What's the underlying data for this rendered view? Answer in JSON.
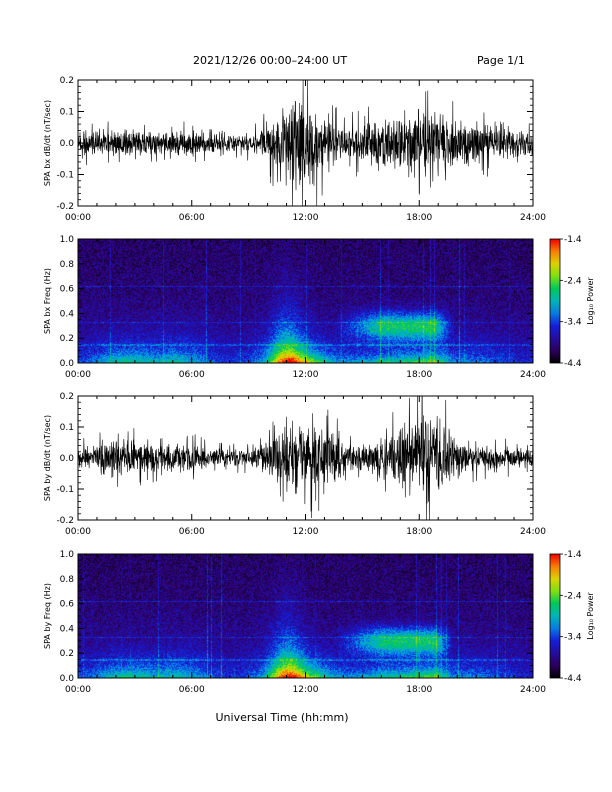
{
  "header": {
    "title": "2021/12/26  00:00–24:00 UT",
    "page_label": "Page 1/1"
  },
  "footer": {
    "xlabel": "Universal Time (hh:mm)"
  },
  "chart_data": [
    {
      "type": "line",
      "id": "bx-wave",
      "ylabel": "SPA bx dB/dt (nT/sec)",
      "xlim": [
        0,
        24
      ],
      "ylim": [
        -0.2,
        0.2
      ],
      "xticks": [
        "00:00",
        "06:00",
        "12:00",
        "18:00",
        "24:00"
      ],
      "yticks": [
        "-0.2",
        "-0.1",
        "0.0",
        "0.1",
        "0.2"
      ],
      "yticks_values": [
        -0.2,
        -0.1,
        0.0,
        0.1,
        0.2
      ],
      "envelope": {
        "x": [
          0,
          2,
          4,
          6,
          8,
          9.5,
          10.5,
          11.5,
          12,
          12.5,
          13,
          14,
          15,
          16,
          17,
          18,
          19,
          20,
          21,
          22,
          23,
          24
        ],
        "amplitude": [
          0.05,
          0.05,
          0.045,
          0.05,
          0.03,
          0.04,
          0.1,
          0.2,
          0.16,
          0.15,
          0.09,
          0.06,
          0.07,
          0.1,
          0.12,
          0.12,
          0.12,
          0.08,
          0.08,
          0.06,
          0.05,
          0.05
        ]
      }
    },
    {
      "type": "heatmap",
      "id": "bx-spec",
      "ylabel": "SPA bx Freq (Hz)",
      "xlim": [
        0,
        24
      ],
      "ylim": [
        0.0,
        1.0
      ],
      "xticks": [
        "00:00",
        "06:00",
        "12:00",
        "18:00",
        "24:00"
      ],
      "yticks": [
        "0.0",
        "0.2",
        "0.4",
        "0.6",
        "0.8",
        "1.0"
      ],
      "yticks_values": [
        0,
        0.2,
        0.4,
        0.6,
        0.8,
        1.0
      ],
      "colorbar": {
        "label": "Log₁₀ Power",
        "range": [
          -4.4,
          -1.4
        ],
        "ticks": [
          "-1.4",
          "-2.4",
          "-3.4",
          "-4.4"
        ]
      }
    },
    {
      "type": "line",
      "id": "by-wave",
      "ylabel": "SPA by dB/dt (nT/sec)",
      "xlim": [
        0,
        24
      ],
      "ylim": [
        -0.2,
        0.2
      ],
      "xticks": [
        "00:00",
        "06:00",
        "12:00",
        "18:00",
        "24:00"
      ],
      "yticks": [
        "-0.2",
        "-0.1",
        "0.0",
        "0.1",
        "0.2"
      ],
      "yticks_values": [
        -0.2,
        -0.1,
        0.0,
        0.1,
        0.2
      ],
      "envelope": {
        "x": [
          0,
          2,
          3,
          4,
          6,
          8,
          9.5,
          10.5,
          11.5,
          12.5,
          13.5,
          14.5,
          15.5,
          16.5,
          17.5,
          18.5,
          19,
          20,
          21,
          22,
          23,
          24
        ],
        "amplitude": [
          0.04,
          0.07,
          0.07,
          0.05,
          0.05,
          0.03,
          0.04,
          0.1,
          0.14,
          0.12,
          0.09,
          0.05,
          0.05,
          0.1,
          0.15,
          0.2,
          0.15,
          0.07,
          0.05,
          0.04,
          0.04,
          0.04
        ]
      }
    },
    {
      "type": "heatmap",
      "id": "by-spec",
      "ylabel": "SPA by Freq (Hz)",
      "xlim": [
        0,
        24
      ],
      "ylim": [
        0.0,
        1.0
      ],
      "xticks": [
        "00:00",
        "06:00",
        "12:00",
        "18:00",
        "24:00"
      ],
      "yticks": [
        "0.0",
        "0.2",
        "0.4",
        "0.6",
        "0.8",
        "1.0"
      ],
      "yticks_values": [
        0,
        0.2,
        0.4,
        0.6,
        0.8,
        1.0
      ],
      "colorbar": {
        "label": "Log₁₀ Power",
        "range": [
          -4.4,
          -1.4
        ],
        "ticks": [
          "-1.4",
          "-2.4",
          "-3.4",
          "-4.4"
        ]
      }
    }
  ]
}
